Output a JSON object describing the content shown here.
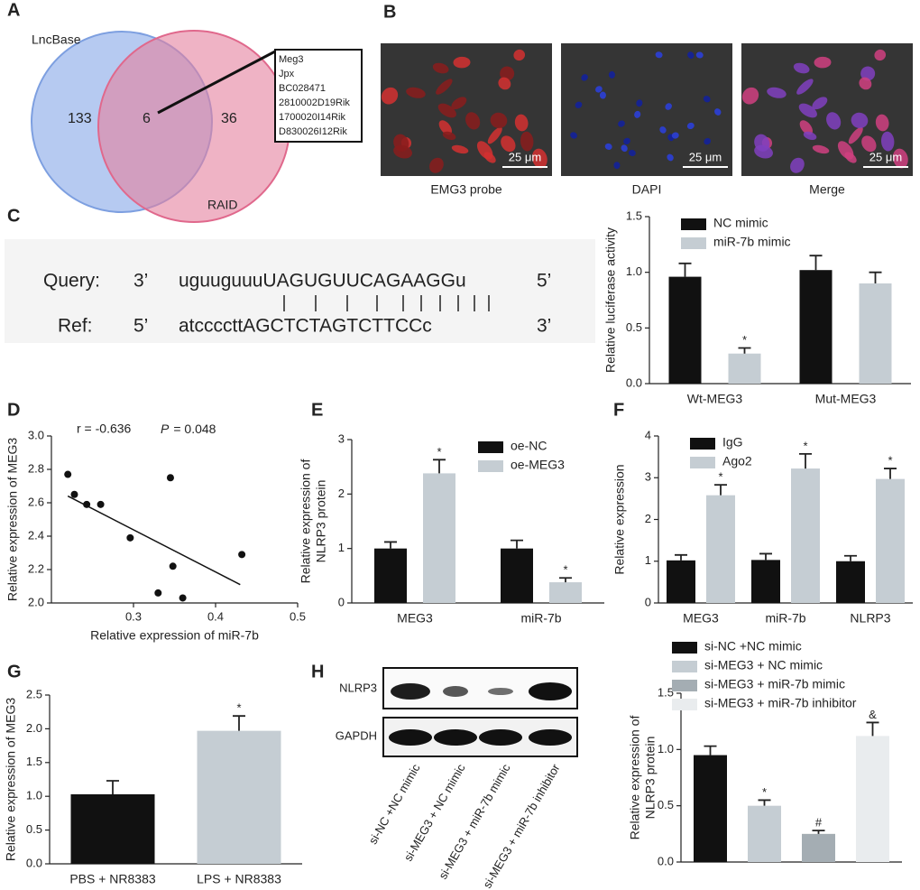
{
  "panel_labels": [
    "A",
    "B",
    "C",
    "D",
    "E",
    "F",
    "G",
    "H"
  ],
  "venn": {
    "sets": [
      "LncBase",
      "RAID"
    ],
    "left_only": 133,
    "both": 6,
    "right_only": 36,
    "overlap_genes": [
      "Meg3",
      "Jpx",
      "BC028471",
      "2810002D19Rik",
      "1700020I14Rik",
      "D830026I12Rik"
    ]
  },
  "images": [
    {
      "label": "EMG3 probe",
      "scale_bar": "25 μm"
    },
    {
      "label": "DAPI",
      "scale_bar": "25 μm"
    },
    {
      "label": "Merge",
      "scale_bar": "25 μm"
    }
  ],
  "alignment": {
    "query": {
      "name": "Query:",
      "start": "3’",
      "sequence": "uguuguuuUAGUGUUCAGAAGGu",
      "end": "5’"
    },
    "ref": {
      "name": "Ref:",
      "start": "5’",
      "sequence": "atccccttAGCTCTAGTCTTCCc",
      "end": "3’"
    }
  },
  "blot": {
    "bands": [
      "NLRP3",
      "GAPDH"
    ],
    "lanes": [
      "si-NC +NC mimic",
      "si-MEG3 + NC mimic",
      "si-MEG3 + miR-7b mimic",
      "si-MEG3 + miR-7b inhibitor"
    ]
  },
  "chart_data": [
    {
      "type": "bar",
      "ylabel": [
        "Relative luciferase activity"
      ],
      "categories": [
        "Wt-MEG3",
        "Mut-MEG3"
      ],
      "series": [
        {
          "name": "NC mimic",
          "color": "#111111",
          "values": [
            0.96,
            1.02
          ],
          "errors": [
            0.12,
            0.13
          ]
        },
        {
          "name": "miR-7b mimic",
          "color": "#c5cdd3",
          "values": [
            0.27,
            0.9
          ],
          "errors": [
            0.05,
            0.1
          ],
          "sig": [
            "*",
            null
          ]
        }
      ],
      "ylim": [
        0,
        1.5
      ],
      "yticks": [
        {
          "value": 0,
          "label": "0.0"
        },
        0.5,
        {
          "value": 1,
          "label": "1.0"
        },
        1.5
      ],
      "legend": "upper left"
    },
    {
      "type": "scatter",
      "xlabel": "Relative expression of miR-7b",
      "ylabel": [
        "Relative expression of MEG3"
      ],
      "annotation": {
        "r": "r = -0.636",
        "p_symbol": "P",
        "p_value": "= 0.048"
      },
      "x": [
        0.22,
        0.228,
        0.243,
        0.26,
        0.296,
        0.345,
        0.348,
        0.33,
        0.36,
        0.432
      ],
      "y": [
        2.77,
        2.65,
        2.59,
        2.59,
        2.39,
        2.75,
        2.22,
        2.06,
        2.03,
        2.29
      ],
      "fit": {
        "x": [
          0.22,
          0.43
        ],
        "y": [
          2.64,
          2.11
        ]
      },
      "xlim": [
        0.2,
        0.5
      ],
      "xticks": [
        0.3,
        0.4,
        0.5
      ],
      "ylim": [
        2.0,
        3.0
      ],
      "yticks": [
        {
          "value": 2,
          "label": "2.0"
        },
        2.2,
        2.4,
        2.6,
        2.8,
        {
          "value": 3,
          "label": "3.0"
        }
      ]
    },
    {
      "type": "bar",
      "ylabel": [
        "Relative expression of",
        "NLRP3 protein"
      ],
      "categories": [
        "MEG3",
        "miR-7b"
      ],
      "series": [
        {
          "name": "oe-NC",
          "color": "#111111",
          "values": [
            1.0,
            1.0
          ],
          "errors": [
            0.12,
            0.15
          ]
        },
        {
          "name": "oe-MEG3",
          "color": "#c5cdd3",
          "values": [
            2.38,
            0.38
          ],
          "errors": [
            0.25,
            0.08
          ],
          "sig": [
            "*",
            "*"
          ]
        }
      ],
      "ylim": [
        0,
        3
      ],
      "yticks": [
        0,
        1,
        2,
        3
      ],
      "legend": "upper right"
    },
    {
      "type": "bar",
      "ylabel": [
        "Relative expression"
      ],
      "categories": [
        "MEG3",
        "miR-7b",
        "NLRP3"
      ],
      "series": [
        {
          "name": "IgG",
          "color": "#111111",
          "values": [
            1.02,
            1.03,
            1.0
          ],
          "errors": [
            0.13,
            0.15,
            0.13
          ]
        },
        {
          "name": "Ago2",
          "color": "#c5cdd3",
          "values": [
            2.58,
            3.22,
            2.97
          ],
          "errors": [
            0.25,
            0.35,
            0.25
          ],
          "sig": [
            "*",
            "*",
            "*"
          ]
        }
      ],
      "ylim": [
        0,
        4
      ],
      "yticks": [
        0,
        1,
        2,
        3,
        4
      ],
      "legend": "upper left"
    },
    {
      "type": "bar",
      "ylabel": [
        "Relative expression of MEG3"
      ],
      "categories": [
        "PBS + NR8383",
        "LPS + NR8383"
      ],
      "values": [
        1.03,
        1.97
      ],
      "errors": [
        0.2,
        0.22
      ],
      "colors": [
        "#111111",
        "#c5cdd3"
      ],
      "sig": [
        null,
        "*"
      ],
      "ylim": [
        0,
        2.5
      ],
      "yticks": [
        {
          "value": 0,
          "label": "0.0"
        },
        0.5,
        {
          "value": 1,
          "label": "1.0"
        },
        1.5,
        {
          "value": 2,
          "label": "2.0"
        },
        2.5
      ]
    },
    {
      "type": "bar",
      "ylabel": [
        "Relative expression of",
        "NLRP3 protein"
      ],
      "categories": [
        null
      ],
      "series": [
        {
          "name": "si-NC +NC mimic",
          "color": "#111111",
          "values": [
            0.95
          ],
          "errors": [
            0.08
          ]
        },
        {
          "name": "si-MEG3 + NC mimic",
          "color": "#c5cdd3",
          "values": [
            0.5
          ],
          "errors": [
            0.05
          ],
          "sig": [
            "*"
          ]
        },
        {
          "name": "si-MEG3 + miR-7b mimic",
          "color": "#a4adb3",
          "values": [
            0.25
          ],
          "errors": [
            0.03
          ],
          "sig": [
            "#"
          ]
        },
        {
          "name": "si-MEG3 + miR-7b inhibitor",
          "color": "#e9ecee",
          "values": [
            1.12
          ],
          "errors": [
            0.12
          ],
          "sig": [
            "&"
          ]
        }
      ],
      "ylim": [
        0,
        1.5
      ],
      "yticks": [
        {
          "value": 0,
          "label": "0.0"
        },
        0.5,
        {
          "value": 1,
          "label": "1.0"
        },
        1.5
      ],
      "legend": "above"
    }
  ]
}
